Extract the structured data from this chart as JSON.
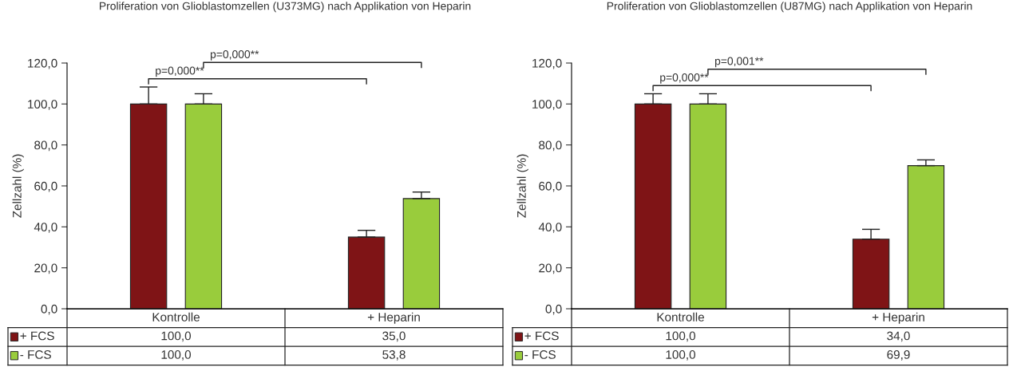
{
  "chart_data": [
    {
      "type": "bar",
      "title": "Proliferation von Glioblastomzellen (U373MG) nach Applikation von Heparin",
      "ylabel": "Zellzahl (%)",
      "categories": [
        "Kontrolle",
        "+ Heparin"
      ],
      "series": [
        {
          "name": "+ FCS",
          "color": "#7f1416",
          "values": [
            100.0,
            35.0
          ],
          "value_labels": [
            "100,0",
            "35,0"
          ],
          "errors": [
            [
              100.0,
              108.3
            ],
            [
              35.0,
              38.3
            ]
          ]
        },
        {
          "name": "- FCS",
          "color": "#99cc3c",
          "values": [
            100.0,
            53.8
          ],
          "value_labels": [
            "100,0",
            "53,8"
          ],
          "errors": [
            [
              100.0,
              105.0
            ],
            [
              53.8,
              57.0
            ]
          ]
        }
      ],
      "ylim": [
        0,
        120
      ],
      "yticks": [
        {
          "value": 0,
          "label": "0,0"
        },
        {
          "value": 20,
          "label": "20,0"
        },
        {
          "value": 40,
          "label": "40,0"
        },
        {
          "value": 60,
          "label": "60,0"
        },
        {
          "value": 80,
          "label": "80,0"
        },
        {
          "value": 100,
          "label": "100,0"
        },
        {
          "value": 120,
          "label": "120,0"
        }
      ],
      "annotations": [
        "p=0,000**",
        "p=0,000**"
      ],
      "legend": "bottom left",
      "grid": false
    },
    {
      "type": "bar",
      "title": "Proliferation von Glioblastomzellen (U87MG) nach Applikation von Heparin",
      "ylabel": "Zellzahl (%)",
      "categories": [
        "Kontrolle",
        "+ Heparin"
      ],
      "series": [
        {
          "name": "+ FCS",
          "color": "#7f1416",
          "values": [
            100.0,
            34.0
          ],
          "value_labels": [
            "100,0",
            "34,0"
          ],
          "errors": [
            [
              100.0,
              105.0
            ],
            [
              34.0,
              38.8
            ]
          ]
        },
        {
          "name": "- FCS",
          "color": "#99cc3c",
          "values": [
            100.0,
            69.9
          ],
          "value_labels": [
            "100,0",
            "69,9"
          ],
          "errors": [
            [
              100.0,
              105.0
            ],
            [
              69.9,
              72.7
            ]
          ]
        }
      ],
      "ylim": [
        0,
        120
      ],
      "yticks": [
        {
          "value": 0,
          "label": "0,0"
        },
        {
          "value": 20,
          "label": "20,0"
        },
        {
          "value": 40,
          "label": "40,0"
        },
        {
          "value": 60,
          "label": "60,0"
        },
        {
          "value": 80,
          "label": "80,0"
        },
        {
          "value": 100,
          "label": "100,0"
        },
        {
          "value": 120,
          "label": "120,0"
        }
      ],
      "annotations": [
        "p=0,000**",
        "p=0,001**"
      ],
      "legend": "bottom left",
      "grid": false
    }
  ]
}
